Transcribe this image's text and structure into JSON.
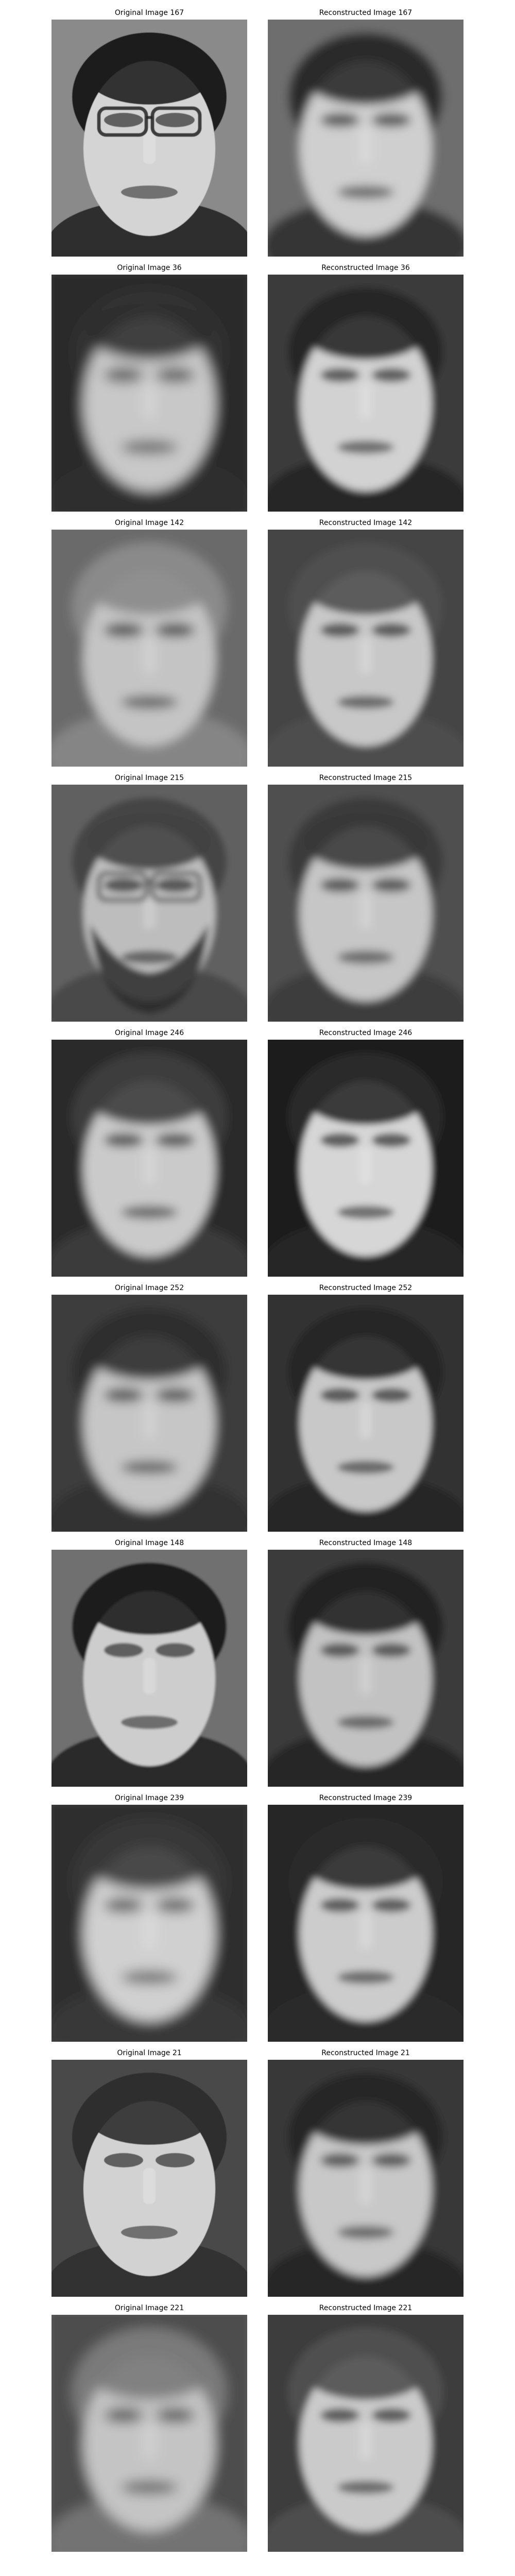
{
  "figure": {
    "rows": [
      {
        "original": {
          "title": "Original Image 167",
          "bg": "#8a8a8a",
          "face": "#d4d4d4",
          "hair": "#1e1e1e",
          "blur": 0.6,
          "glasses": true,
          "beard": false
        },
        "reconstructed": {
          "title": "Reconstructed Image 167",
          "bg": "#6e6e6e",
          "face": "#cfcfcf",
          "hair": "#2a2a2a",
          "blur": 9,
          "glasses": false,
          "beard": false
        }
      },
      {
        "original": {
          "title": "Original Image 36",
          "bg": "#2a2a2a",
          "face": "#c8c8c8",
          "hair": "#303030",
          "blur": 12,
          "glasses": false,
          "beard": false
        },
        "reconstructed": {
          "title": "Reconstructed Image 36",
          "bg": "#3a3a3a",
          "face": "#d2d2d2",
          "hair": "#262626",
          "blur": 7,
          "glasses": false,
          "beard": false
        }
      },
      {
        "original": {
          "title": "Original Image 142",
          "bg": "#6a6a6a",
          "face": "#c4c4c4",
          "hair": "#8a8a8a",
          "blur": 10,
          "glasses": false,
          "beard": false
        },
        "reconstructed": {
          "title": "Reconstructed Image 142",
          "bg": "#444444",
          "face": "#c8c8c8",
          "hair": "#505050",
          "blur": 7,
          "glasses": false,
          "beard": false
        }
      },
      {
        "original": {
          "title": "Original Image 215",
          "bg": "#606060",
          "face": "#bdbdbd",
          "hair": "#444444",
          "blur": 6,
          "glasses": true,
          "beard": true
        },
        "reconstructed": {
          "title": "Reconstructed Image 215",
          "bg": "#505050",
          "face": "#c6c6c6",
          "hair": "#3a3a3a",
          "blur": 8,
          "glasses": false,
          "beard": false
        }
      },
      {
        "original": {
          "title": "Original Image 246",
          "bg": "#2a2a2a",
          "face": "#cacaca",
          "hair": "#3e3e3e",
          "blur": 9,
          "glasses": false,
          "beard": false
        },
        "reconstructed": {
          "title": "Reconstructed Image 246",
          "bg": "#1e1e1e",
          "face": "#d6d6d6",
          "hair": "#2a2a2a",
          "blur": 6,
          "glasses": false,
          "beard": false
        }
      },
      {
        "original": {
          "title": "Original Image 252",
          "bg": "#3e3e3e",
          "face": "#c6c6c6",
          "hair": "#2e2e2e",
          "blur": 10,
          "glasses": false,
          "beard": false
        },
        "reconstructed": {
          "title": "Reconstructed Image 252",
          "bg": "#303030",
          "face": "#c8c8c8",
          "hair": "#262626",
          "blur": 6,
          "glasses": false,
          "beard": false
        }
      },
      {
        "original": {
          "title": "Original Image 148",
          "bg": "#707070",
          "face": "#cdcdcd",
          "hair": "#1c1c1c",
          "blur": 2,
          "glasses": false,
          "beard": false
        },
        "reconstructed": {
          "title": "Reconstructed Image 148",
          "bg": "#3a3a3a",
          "face": "#c2c2c2",
          "hair": "#242424",
          "blur": 7,
          "glasses": false,
          "beard": false
        }
      },
      {
        "original": {
          "title": "Original Image 239",
          "bg": "#2e2e2e",
          "face": "#d0d0d0",
          "hair": "#383838",
          "blur": 12,
          "glasses": false,
          "beard": false
        },
        "reconstructed": {
          "title": "Reconstructed Image 239",
          "bg": "#262626",
          "face": "#cccccc",
          "hair": "#2a2a2a",
          "blur": 7,
          "glasses": false,
          "beard": false
        }
      },
      {
        "original": {
          "title": "Original Image 21",
          "bg": "#4a4a4a",
          "face": "#d2d2d2",
          "hair": "#2e2e2e",
          "blur": 0.6,
          "glasses": false,
          "beard": false
        },
        "reconstructed": {
          "title": "Reconstructed Image 21",
          "bg": "#383838",
          "face": "#c8c8c8",
          "hair": "#262626",
          "blur": 8,
          "glasses": false,
          "beard": false
        }
      },
      {
        "original": {
          "title": "Original Image 221",
          "bg": "#4e4e4e",
          "face": "#c4c4c4",
          "hair": "#7a7a7a",
          "blur": 12,
          "glasses": false,
          "beard": false
        },
        "reconstructed": {
          "title": "Reconstructed Image 221",
          "bg": "#3c3c3c",
          "face": "#cacaca",
          "hair": "#505050",
          "blur": 7,
          "glasses": false,
          "beard": false
        }
      }
    ]
  }
}
